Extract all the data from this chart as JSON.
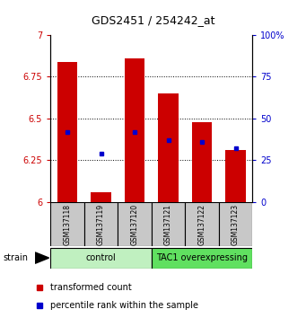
{
  "title": "GDS2451 / 254242_at",
  "samples": [
    "GSM137118",
    "GSM137119",
    "GSM137120",
    "GSM137121",
    "GSM137122",
    "GSM137123"
  ],
  "red_values": [
    6.84,
    6.06,
    6.86,
    6.65,
    6.48,
    6.31
  ],
  "blue_pct": [
    42,
    29,
    42,
    37,
    36,
    32
  ],
  "ylim_left": [
    6.0,
    7.0
  ],
  "ylim_right": [
    0,
    100
  ],
  "yticks_left": [
    6.0,
    6.25,
    6.5,
    6.75,
    7.0
  ],
  "ytick_labels_left": [
    "6",
    "6.25",
    "6.5",
    "6.75",
    "7"
  ],
  "yticks_right": [
    0,
    25,
    50,
    75,
    100
  ],
  "ytick_labels_right": [
    "0",
    "25",
    "50",
    "75",
    "100%"
  ],
  "groups": [
    {
      "label": "control",
      "indices": [
        0,
        1,
        2
      ],
      "color": "#c0f0c0"
    },
    {
      "label": "TAC1 overexpressing",
      "indices": [
        3,
        4,
        5
      ],
      "color": "#60e060"
    }
  ],
  "bar_width": 0.6,
  "red_color": "#cc0000",
  "blue_color": "#0000cc",
  "base_value": 6.0,
  "strain_label": "strain",
  "legend_red": "transformed count",
  "legend_blue": "percentile rank within the sample",
  "bg_color": "#ffffff",
  "left_tick_color": "#cc0000",
  "right_tick_color": "#0000cc",
  "sample_box_color": "#c8c8c8",
  "title_fontsize": 9,
  "tick_fontsize": 7,
  "label_fontsize": 6,
  "legend_fontsize": 7
}
